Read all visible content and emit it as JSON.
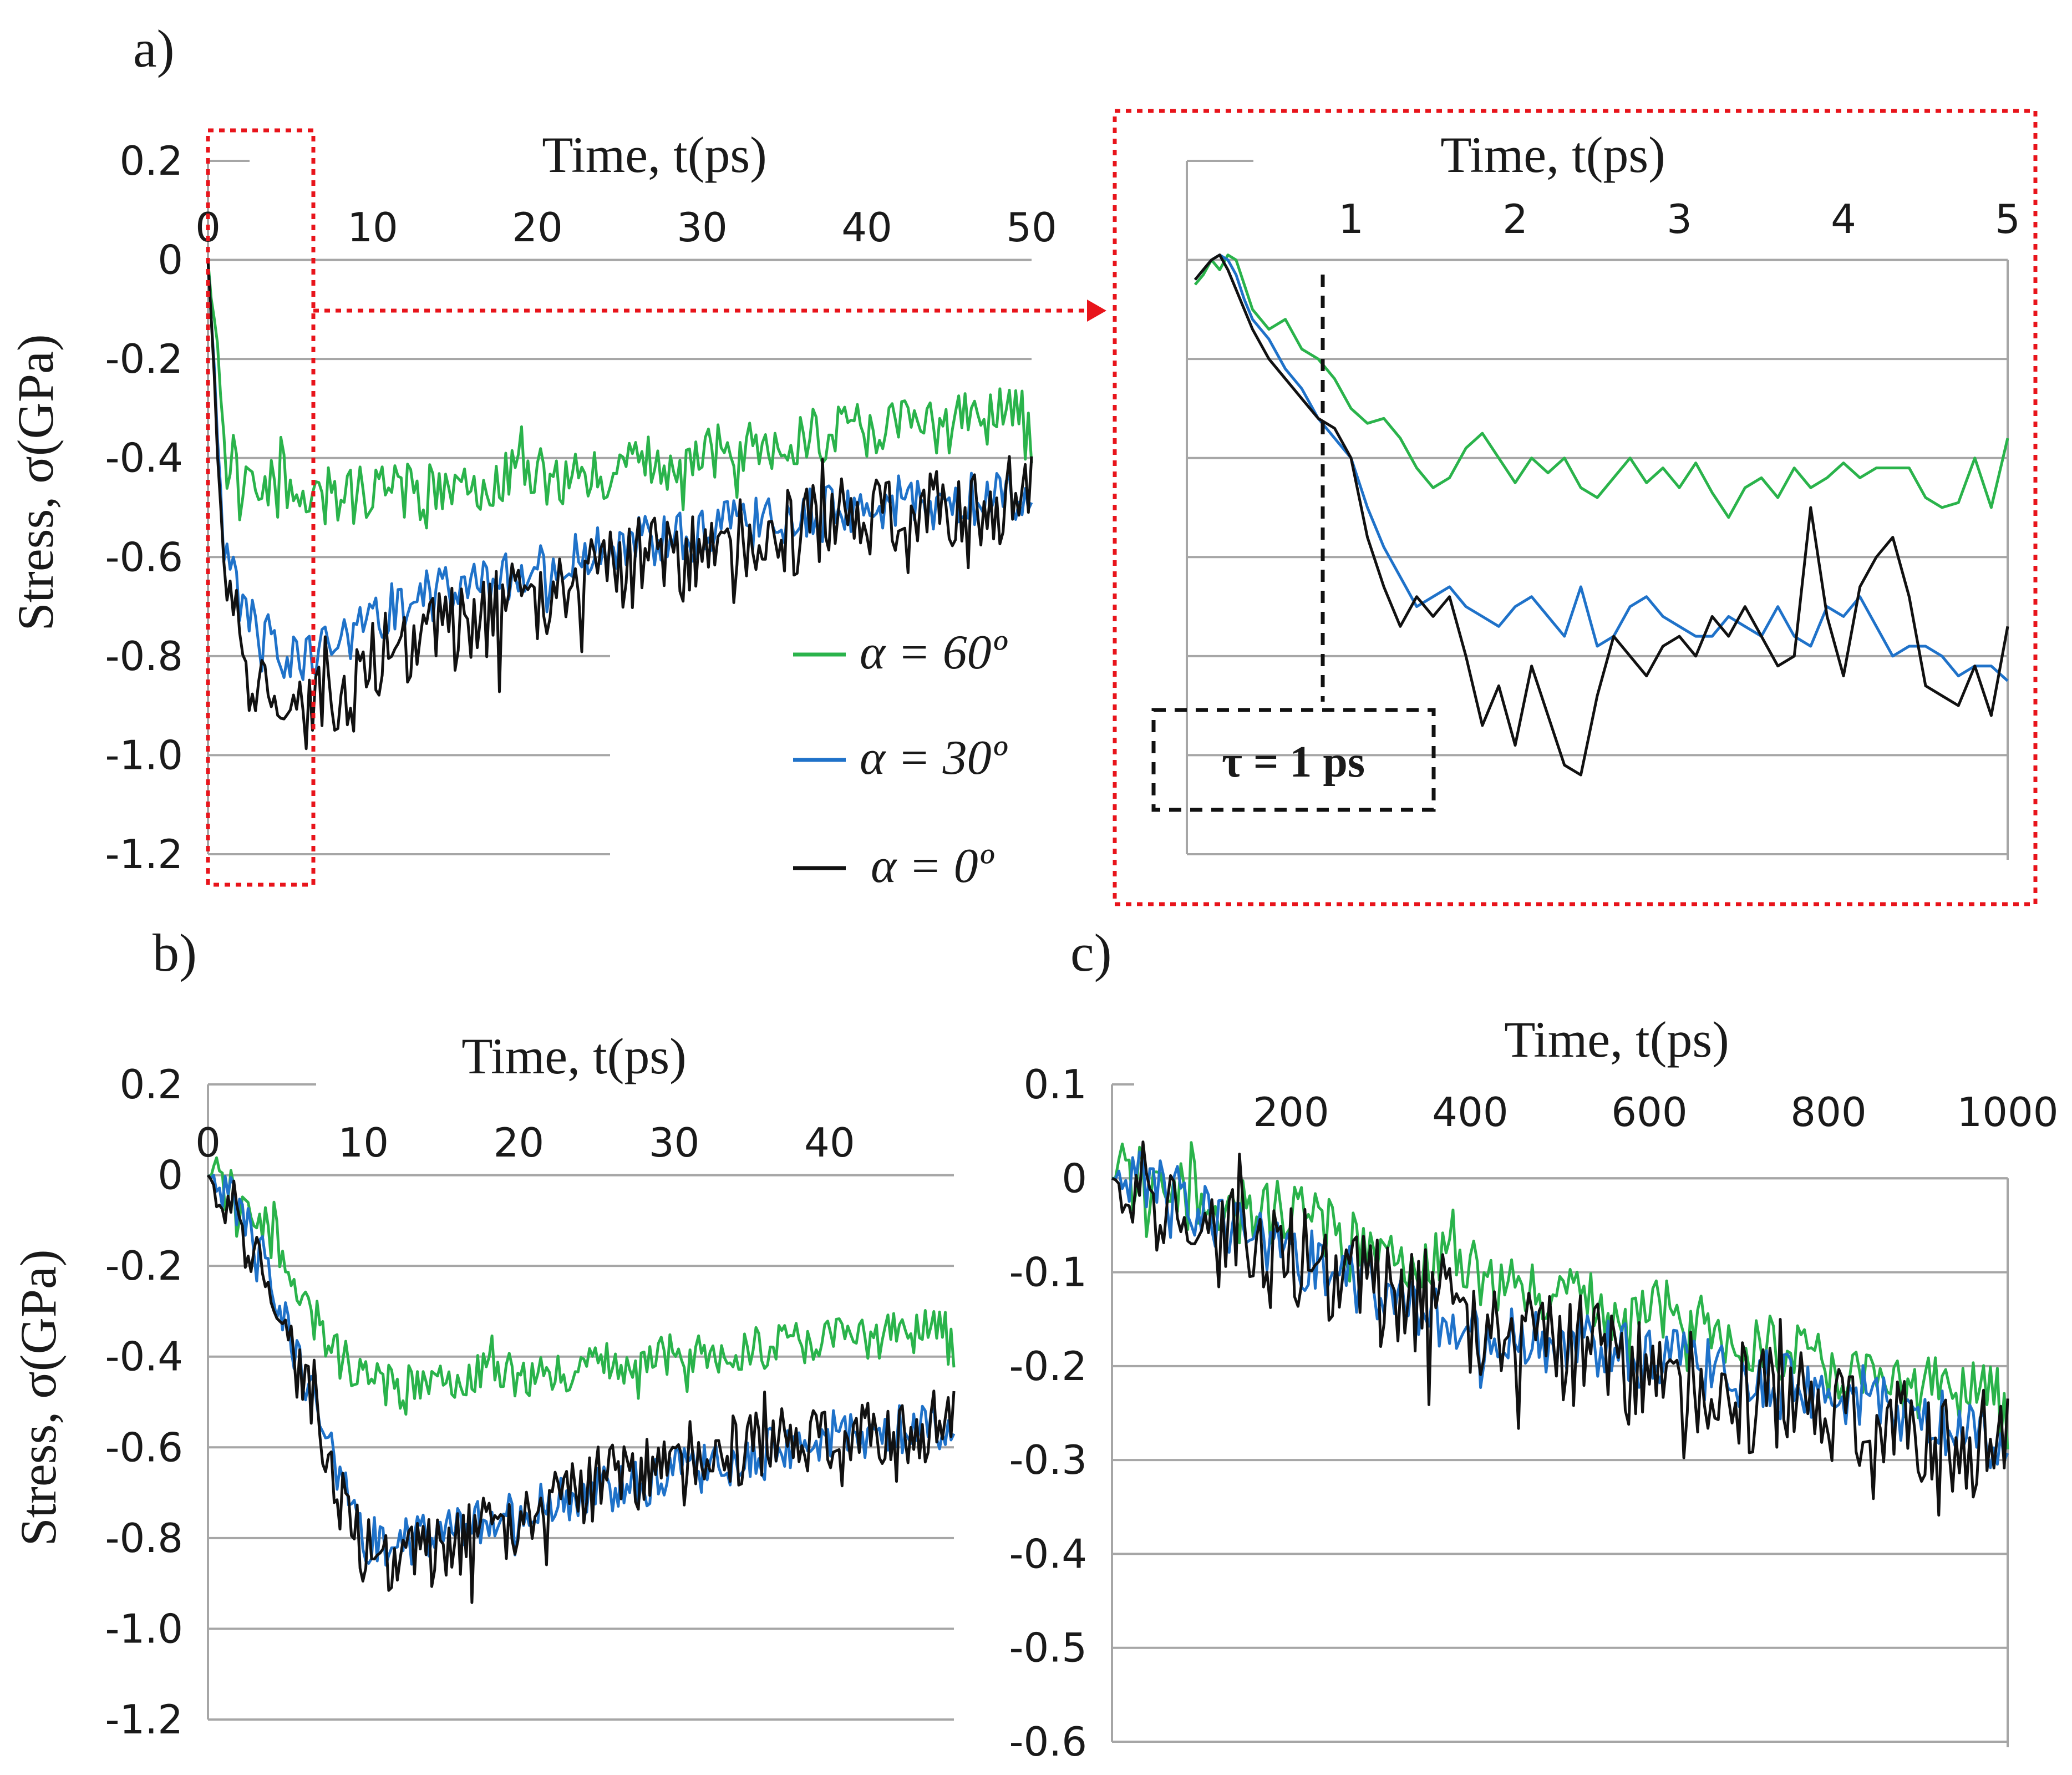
{
  "colors": {
    "green": "#2ab34b",
    "blue": "#1f72c9",
    "black": "#111111",
    "red_dotted": "#e8141b",
    "annotation": "#111111"
  },
  "panels": {
    "a": "a)",
    "b": "b)",
    "c": "c)"
  },
  "legend": {
    "green": "α = 60º",
    "blue": "α = 30º",
    "black": "α = 0º"
  },
  "annotation": {
    "text": "τ = 1 ps"
  },
  "chart_data": [
    {
      "id": "a",
      "type": "line",
      "title": "",
      "xlabel": "Time, t(ps)",
      "ylabel": "Stress, σ(GPa)",
      "xlim": [
        0,
        50
      ],
      "ylim": [
        -1.2,
        0.2
      ],
      "x_ticks": [
        "0",
        "10",
        "20",
        "30",
        "40",
        "50"
      ],
      "x_tick_values": [
        0,
        10,
        20,
        30,
        40,
        50
      ],
      "y_ticks": [
        "0.2",
        "0",
        "-0.2",
        "-0.4",
        "-0.6",
        "-0.8",
        "-1.0",
        "-1.2"
      ],
      "y_tick_values": [
        0.2,
        0,
        -0.2,
        -0.4,
        -0.6,
        -0.8,
        -1.0,
        -1.2
      ],
      "series": [
        {
          "name": "α = 60º",
          "color": "green",
          "x": [
            0,
            0.5,
            1,
            2,
            3,
            5,
            8,
            10,
            15,
            20,
            25,
            30,
            35,
            40,
            45,
            50
          ],
          "values": [
            0,
            -0.2,
            -0.4,
            -0.42,
            -0.45,
            -0.45,
            -0.47,
            -0.48,
            -0.46,
            -0.44,
            -0.42,
            -0.4,
            -0.36,
            -0.34,
            -0.33,
            -0.31
          ],
          "noise": 0.06
        },
        {
          "name": "α = 30º",
          "color": "blue",
          "x": [
            0,
            0.5,
            1,
            2,
            3,
            5,
            8,
            10,
            15,
            20,
            25,
            30,
            35,
            40,
            45,
            50
          ],
          "values": [
            0,
            -0.3,
            -0.6,
            -0.7,
            -0.75,
            -0.8,
            -0.78,
            -0.72,
            -0.66,
            -0.62,
            -0.58,
            -0.55,
            -0.52,
            -0.5,
            -0.49,
            -0.47
          ],
          "noise": 0.055
        },
        {
          "name": "α = 0º",
          "color": "black",
          "x": [
            0,
            0.5,
            1,
            2,
            3,
            5,
            8,
            10,
            15,
            20,
            25,
            30,
            35,
            40,
            45,
            50
          ],
          "values": [
            0,
            -0.3,
            -0.6,
            -0.8,
            -0.85,
            -0.9,
            -0.9,
            -0.82,
            -0.74,
            -0.68,
            -0.62,
            -0.58,
            -0.55,
            -0.52,
            -0.5,
            -0.48
          ],
          "noise": 0.09
        }
      ]
    },
    {
      "id": "a_zoom",
      "type": "line",
      "title": "",
      "xlabel": "Time, t(ps)",
      "ylabel": "",
      "xlim": [
        0,
        5
      ],
      "ylim": [
        -1.2,
        0.2
      ],
      "x_ticks": [
        "1",
        "2",
        "3",
        "4",
        "5"
      ],
      "x_tick_values": [
        1,
        2,
        3,
        4,
        5
      ],
      "series": [
        {
          "name": "α = 60º",
          "color": "green",
          "x": [
            0.05,
            0.1,
            0.15,
            0.2,
            0.25,
            0.3,
            0.35,
            0.4,
            0.5,
            0.6,
            0.7,
            0.8,
            0.9,
            1.0,
            1.1,
            1.2,
            1.3,
            1.4,
            1.5,
            1.6,
            1.7,
            1.8,
            1.9,
            2.0,
            2.1,
            2.2,
            2.3,
            2.4,
            2.5,
            2.6,
            2.7,
            2.8,
            2.9,
            3.0,
            3.1,
            3.2,
            3.3,
            3.4,
            3.5,
            3.6,
            3.7,
            3.8,
            3.9,
            4.0,
            4.1,
            4.2,
            4.3,
            4.4,
            4.5,
            4.6,
            4.7,
            4.8,
            4.9,
            5.0
          ],
          "values": [
            -0.05,
            -0.03,
            0.0,
            -0.02,
            0.01,
            0.0,
            -0.05,
            -0.1,
            -0.14,
            -0.12,
            -0.18,
            -0.2,
            -0.24,
            -0.3,
            -0.33,
            -0.32,
            -0.36,
            -0.42,
            -0.46,
            -0.44,
            -0.38,
            -0.35,
            -0.4,
            -0.45,
            -0.4,
            -0.43,
            -0.4,
            -0.46,
            -0.48,
            -0.44,
            -0.4,
            -0.45,
            -0.42,
            -0.46,
            -0.41,
            -0.47,
            -0.52,
            -0.46,
            -0.44,
            -0.48,
            -0.42,
            -0.46,
            -0.44,
            -0.41,
            -0.44,
            -0.42,
            -0.42,
            -0.42,
            -0.48,
            -0.5,
            -0.49,
            -0.4,
            -0.5,
            -0.36
          ]
        },
        {
          "name": "α = 30º",
          "color": "blue",
          "x": [
            0.05,
            0.1,
            0.15,
            0.2,
            0.25,
            0.3,
            0.35,
            0.4,
            0.5,
            0.6,
            0.7,
            0.8,
            0.9,
            1.0,
            1.1,
            1.2,
            1.3,
            1.4,
            1.5,
            1.6,
            1.7,
            1.8,
            1.9,
            2.0,
            2.1,
            2.2,
            2.3,
            2.4,
            2.5,
            2.6,
            2.7,
            2.8,
            2.9,
            3.0,
            3.1,
            3.2,
            3.3,
            3.4,
            3.5,
            3.6,
            3.7,
            3.8,
            3.9,
            4.0,
            4.1,
            4.2,
            4.3,
            4.4,
            4.5,
            4.6,
            4.7,
            4.8,
            4.9,
            5.0
          ],
          "values": [
            -0.04,
            -0.02,
            0.0,
            0.01,
            0.0,
            -0.03,
            -0.08,
            -0.12,
            -0.16,
            -0.22,
            -0.26,
            -0.32,
            -0.36,
            -0.4,
            -0.5,
            -0.58,
            -0.64,
            -0.7,
            -0.68,
            -0.66,
            -0.7,
            -0.72,
            -0.74,
            -0.7,
            -0.68,
            -0.72,
            -0.76,
            -0.66,
            -0.78,
            -0.76,
            -0.7,
            -0.68,
            -0.72,
            -0.74,
            -0.76,
            -0.76,
            -0.72,
            -0.74,
            -0.76,
            -0.7,
            -0.76,
            -0.78,
            -0.7,
            -0.72,
            -0.68,
            -0.74,
            -0.8,
            -0.78,
            -0.78,
            -0.8,
            -0.84,
            -0.82,
            -0.82,
            -0.85
          ]
        },
        {
          "name": "α = 0º",
          "color": "black",
          "x": [
            0.05,
            0.1,
            0.15,
            0.2,
            0.25,
            0.3,
            0.35,
            0.4,
            0.5,
            0.6,
            0.7,
            0.8,
            0.9,
            1.0,
            1.1,
            1.2,
            1.3,
            1.4,
            1.5,
            1.6,
            1.7,
            1.8,
            1.9,
            2.0,
            2.1,
            2.2,
            2.3,
            2.4,
            2.5,
            2.6,
            2.7,
            2.8,
            2.9,
            3.0,
            3.1,
            3.2,
            3.3,
            3.4,
            3.5,
            3.6,
            3.7,
            3.8,
            3.9,
            4.0,
            4.1,
            4.2,
            4.3,
            4.4,
            4.5,
            4.6,
            4.7,
            4.8,
            4.9,
            5.0
          ],
          "values": [
            -0.04,
            -0.02,
            0.0,
            0.01,
            -0.02,
            -0.06,
            -0.1,
            -0.14,
            -0.2,
            -0.24,
            -0.28,
            -0.32,
            -0.34,
            -0.4,
            -0.56,
            -0.66,
            -0.74,
            -0.68,
            -0.72,
            -0.68,
            -0.8,
            -0.94,
            -0.86,
            -0.98,
            -0.82,
            -0.92,
            -1.02,
            -1.04,
            -0.88,
            -0.76,
            -0.8,
            -0.84,
            -0.78,
            -0.76,
            -0.8,
            -0.72,
            -0.76,
            -0.7,
            -0.76,
            -0.82,
            -0.8,
            -0.5,
            -0.72,
            -0.84,
            -0.66,
            -0.6,
            -0.56,
            -0.68,
            -0.86,
            -0.88,
            -0.9,
            -0.82,
            -0.92,
            -0.74
          ]
        }
      ]
    },
    {
      "id": "b",
      "type": "line",
      "title": "",
      "xlabel": "Time, t(ps)",
      "ylabel": "Stress, σ(GPa)",
      "xlim": [
        0,
        48
      ],
      "ylim": [
        -1.2,
        0.2
      ],
      "x_ticks": [
        "0",
        "10",
        "20",
        "30",
        "40"
      ],
      "x_tick_values": [
        0,
        10,
        20,
        30,
        40
      ],
      "y_ticks": [
        "0.2",
        "0",
        "-0.2",
        "-0.4",
        "-0.6",
        "-0.8",
        "-1.0",
        "-1.2"
      ],
      "y_tick_values": [
        0.2,
        0,
        -0.2,
        -0.4,
        -0.6,
        -0.8,
        -1.0,
        -1.2
      ],
      "series": [
        {
          "name": "α = 60º",
          "color": "green",
          "x": [
            0,
            2,
            4,
            6,
            8,
            10,
            12,
            15,
            20,
            25,
            30,
            35,
            40,
            45,
            48
          ],
          "values": [
            0,
            -0.05,
            -0.12,
            -0.25,
            -0.38,
            -0.46,
            -0.47,
            -0.45,
            -0.44,
            -0.42,
            -0.4,
            -0.38,
            -0.36,
            -0.35,
            -0.34
          ],
          "noise": 0.05
        },
        {
          "name": "α = 30º",
          "color": "blue",
          "x": [
            0,
            2,
            4,
            6,
            8,
            10,
            12,
            15,
            20,
            25,
            30,
            35,
            40,
            45,
            48
          ],
          "values": [
            0,
            -0.08,
            -0.22,
            -0.42,
            -0.62,
            -0.8,
            -0.82,
            -0.78,
            -0.74,
            -0.7,
            -0.66,
            -0.62,
            -0.58,
            -0.56,
            -0.55
          ],
          "noise": 0.055
        },
        {
          "name": "α = 0º",
          "color": "black",
          "x": [
            0,
            2,
            4,
            6,
            8,
            10,
            12,
            15,
            20,
            25,
            30,
            35,
            40,
            45,
            48
          ],
          "values": [
            0,
            -0.1,
            -0.24,
            -0.44,
            -0.66,
            -0.84,
            -0.86,
            -0.82,
            -0.76,
            -0.68,
            -0.62,
            -0.6,
            -0.58,
            -0.56,
            -0.55
          ],
          "noise": 0.08
        }
      ]
    },
    {
      "id": "c",
      "type": "line",
      "title": "",
      "xlabel": "Time, t(ps)",
      "ylabel": "",
      "xlim": [
        0,
        1000
      ],
      "ylim": [
        -0.6,
        0.1
      ],
      "x_ticks": [
        "200",
        "400",
        "600",
        "800",
        "1000"
      ],
      "x_tick_values": [
        200,
        400,
        600,
        800,
        1000
      ],
      "y_ticks": [
        "0.1",
        "0",
        "-0.1",
        "-0.2",
        "-0.3",
        "-0.4",
        "-0.5",
        "-0.6"
      ],
      "y_tick_values": [
        0.1,
        0,
        -0.1,
        -0.2,
        -0.3,
        -0.4,
        -0.5,
        -0.6
      ],
      "series": [
        {
          "name": "α = 60º",
          "color": "green",
          "x": [
            0,
            50,
            100,
            150,
            200,
            250,
            300,
            350,
            400,
            450,
            500,
            550,
            600,
            650,
            700,
            750,
            800,
            850,
            900,
            950,
            1000
          ],
          "values": [
            0,
            0.0,
            -0.02,
            -0.03,
            -0.04,
            -0.06,
            -0.08,
            -0.09,
            -0.1,
            -0.11,
            -0.12,
            -0.14,
            -0.14,
            -0.15,
            -0.17,
            -0.18,
            -0.2,
            -0.22,
            -0.22,
            -0.23,
            -0.23
          ],
          "noise": 0.035
        },
        {
          "name": "α = 30º",
          "color": "blue",
          "x": [
            0,
            50,
            100,
            150,
            200,
            250,
            300,
            350,
            400,
            450,
            500,
            550,
            600,
            650,
            700,
            750,
            800,
            850,
            900,
            950,
            1000
          ],
          "values": [
            0,
            -0.01,
            -0.03,
            -0.06,
            -0.08,
            -0.1,
            -0.12,
            -0.14,
            -0.16,
            -0.17,
            -0.18,
            -0.18,
            -0.19,
            -0.2,
            -0.21,
            -0.22,
            -0.23,
            -0.24,
            -0.25,
            -0.27,
            -0.28
          ],
          "noise": 0.035
        },
        {
          "name": "α = 0º",
          "color": "black",
          "x": [
            0,
            50,
            100,
            150,
            200,
            250,
            300,
            350,
            400,
            450,
            500,
            550,
            600,
            650,
            700,
            750,
            800,
            850,
            900,
            950,
            1000
          ],
          "values": [
            0,
            -0.02,
            -0.05,
            -0.07,
            -0.09,
            -0.11,
            -0.12,
            -0.13,
            -0.15,
            -0.17,
            -0.18,
            -0.19,
            -0.2,
            -0.22,
            -0.23,
            -0.24,
            -0.25,
            -0.26,
            -0.27,
            -0.28,
            -0.29
          ],
          "noise": 0.06
        }
      ]
    }
  ]
}
